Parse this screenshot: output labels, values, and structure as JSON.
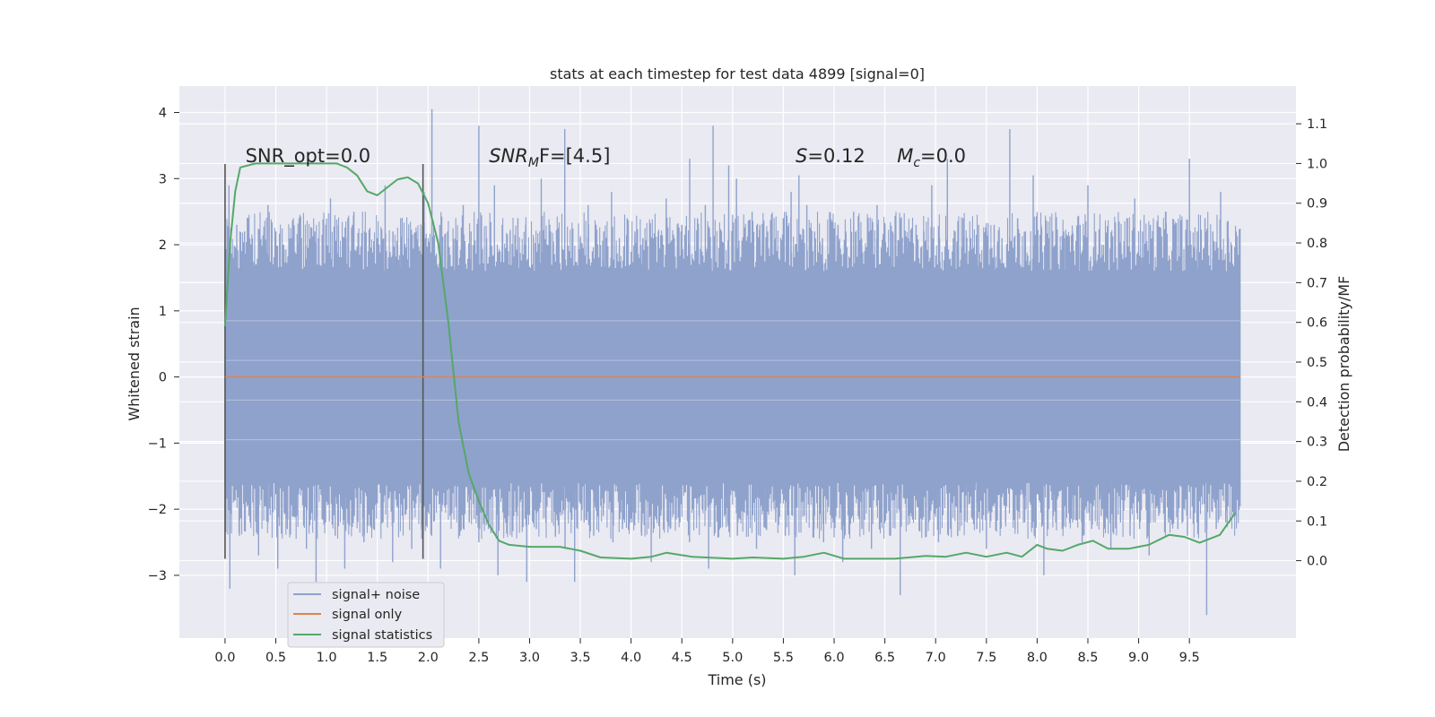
{
  "chart_data": {
    "type": "line",
    "title": "stats at each timestep for test data 4899 [signal=0]",
    "xlabel": "Time (s)",
    "ylabel": "Whitened strain",
    "y2label": "Detection probability/MF",
    "xlim": [
      -0.45,
      10.55
    ],
    "ylim": [
      -3.95,
      4.4
    ],
    "y2lim": [
      -0.195,
      1.195
    ],
    "xticks": [
      "0.0",
      "0.5",
      "1.0",
      "1.5",
      "2.0",
      "2.5",
      "3.0",
      "3.5",
      "4.0",
      "4.5",
      "5.0",
      "5.5",
      "6.0",
      "6.5",
      "7.0",
      "7.5",
      "8.0",
      "8.5",
      "9.0",
      "9.5"
    ],
    "yticks": [
      "4",
      "3",
      "2",
      "1",
      "0",
      "−1",
      "−2",
      "−3"
    ],
    "y2ticks": [
      "1.1",
      "1.0",
      "0.9",
      "0.8",
      "0.7",
      "0.6",
      "0.5",
      "0.4",
      "0.3",
      "0.2",
      "0.1",
      "0.0"
    ],
    "grid": true,
    "legend_position": "lower-left",
    "colors": {
      "noise": "#8fa2cc",
      "signal": "#dd8452",
      "stats": "#55a868",
      "marker": "#555555",
      "background": "#eaeaf2",
      "grid": "#ffffff"
    },
    "annotations": [
      {
        "text": "SNR_opt=0.0",
        "x": 0.2,
        "y": 3.25
      },
      {
        "text": "SNR",
        "sub": "M",
        "suffix": "F=[4.5]",
        "x": 2.6,
        "y": 3.25,
        "italic": true
      },
      {
        "text": "S",
        "suffix": "=0.12",
        "x": 5.62,
        "y": 3.25,
        "italic": true
      },
      {
        "text": "M",
        "sub": "c",
        "suffix": "=0.0",
        "x": 6.62,
        "y": 3.25,
        "italic": true
      }
    ],
    "markers": [
      {
        "x": 0.0,
        "y_range": [
          -2.75,
          3.22
        ]
      },
      {
        "x": 1.95,
        "y_range": [
          -2.75,
          3.22
        ]
      }
    ],
    "series": [
      {
        "name": "signal+ noise",
        "kind": "noise",
        "x_range": [
          0.0,
          10.0
        ],
        "band": [
          -1.45,
          1.45
        ],
        "peaks_up": [
          2.9,
          2.3,
          2.2,
          2.1,
          2.0,
          2.6,
          2.2,
          2.0,
          2.1,
          2.4,
          2.0,
          2.2,
          2.0,
          2.7,
          2.3,
          2.1,
          2.5,
          2.0,
          2.2,
          2.1,
          2.9,
          2.2,
          2.4,
          2.1,
          2.2,
          2.8,
          4.05,
          2.3,
          2.2,
          2.1,
          2.6,
          2.2,
          3.8,
          2.1,
          2.9,
          2.3,
          2.2,
          2.4,
          2.3,
          2.1,
          3.0,
          2.2,
          2.1,
          3.75,
          2.2,
          2.1,
          2.6,
          2.3,
          2.2,
          2.8,
          2.1,
          2.4,
          2.2,
          2.1,
          2.0,
          2.2,
          2.7,
          2.1,
          2.3,
          3.3,
          2.4,
          2.6,
          3.8,
          2.2,
          3.2,
          3.0,
          2.1,
          2.5,
          2.3,
          2.2,
          2.1,
          2.4,
          2.8,
          3.05,
          2.6,
          2.2,
          2.1,
          2.4,
          2.3,
          2.2,
          2.5,
          2.1,
          2.2,
          2.6,
          2.3,
          2.2,
          2.4,
          2.1,
          2.3,
          2.2,
          2.9,
          2.1,
          3.3,
          2.2,
          2.4,
          2.1,
          2.3,
          2.2,
          2.3,
          2.1,
          3.75,
          2.4,
          2.2,
          3.05,
          2.3,
          2.1,
          2.2,
          2.1,
          2.2,
          2.3,
          2.9,
          2.2,
          2.0,
          2.1,
          2.2,
          2.4,
          2.7,
          2.2,
          2.3,
          2.1,
          2.5,
          2.2,
          2.1,
          3.3,
          2.2,
          2.4,
          2.2,
          2.8,
          2.1,
          2.2
        ],
        "peaks_down": [
          -3.2,
          -2.4,
          -2.1,
          -2.7,
          -2.2,
          -2.9,
          -2.3,
          -2.1,
          -2.6,
          -3.1,
          -2.2,
          -2.4,
          -2.9,
          -2.1,
          -2.5,
          -2.3,
          -2.2,
          -2.8,
          -2.1,
          -2.6,
          -2.3,
          -2.2,
          -2.9,
          -2.1,
          -2.4,
          -2.2,
          -2.5,
          -2.3,
          -3.0,
          -2.2,
          -2.1,
          -3.1,
          -2.3,
          -2.2,
          -2.4,
          -2.6,
          -3.1,
          -2.2,
          -2.4,
          -2.1,
          -2.5,
          -2.3,
          -2.2,
          -2.4,
          -2.8,
          -2.1,
          -2.3,
          -2.2,
          -2.5,
          -2.1,
          -2.9,
          -2.3,
          -2.2,
          -2.4,
          -2.1,
          -2.6,
          -2.3,
          -2.2,
          -2.4,
          -3.0,
          -2.1,
          -2.3,
          -2.5,
          -2.2,
          -2.8,
          -2.1,
          -2.3,
          -2.6,
          -2.2,
          -2.4,
          -3.3,
          -2.1,
          -2.3,
          -2.2,
          -2.5,
          -2.1,
          -2.4,
          -2.2,
          -2.3,
          -2.6,
          -2.1,
          -2.2,
          -2.3,
          -2.2,
          -2.4,
          -3.0,
          -2.1,
          -2.3,
          -2.2,
          -2.5,
          -2.3,
          -2.1,
          -2.6,
          -2.2,
          -2.4,
          -2.3,
          -2.7,
          -2.1,
          -2.2,
          -2.3,
          -2.4,
          -2.2,
          -3.6,
          -2.3,
          -2.2,
          -2.1
        ]
      },
      {
        "name": "signal only",
        "kind": "line",
        "x": [
          0.0,
          10.0
        ],
        "y": [
          0.0,
          0.0
        ]
      },
      {
        "name": "signal statistics",
        "kind": "line",
        "axis": "right",
        "x": [
          0.0,
          0.05,
          0.1,
          0.15,
          0.3,
          0.5,
          0.7,
          0.9,
          1.1,
          1.2,
          1.3,
          1.4,
          1.5,
          1.6,
          1.7,
          1.8,
          1.9,
          2.0,
          2.1,
          2.2,
          2.3,
          2.4,
          2.5,
          2.6,
          2.7,
          2.8,
          3.0,
          3.3,
          3.5,
          3.7,
          4.0,
          4.2,
          4.35,
          4.6,
          5.0,
          5.2,
          5.5,
          5.7,
          5.9,
          6.1,
          6.3,
          6.6,
          6.9,
          7.1,
          7.3,
          7.5,
          7.7,
          7.85,
          8.0,
          8.1,
          8.25,
          8.4,
          8.55,
          8.7,
          8.9,
          9.1,
          9.3,
          9.45,
          9.6,
          9.8,
          9.95
        ],
        "y": [
          0.59,
          0.8,
          0.93,
          0.99,
          1.0,
          1.0,
          1.0,
          1.0,
          1.0,
          0.99,
          0.97,
          0.93,
          0.92,
          0.94,
          0.96,
          0.965,
          0.95,
          0.9,
          0.8,
          0.6,
          0.35,
          0.22,
          0.15,
          0.09,
          0.05,
          0.04,
          0.035,
          0.035,
          0.025,
          0.008,
          0.005,
          0.01,
          0.02,
          0.01,
          0.005,
          0.008,
          0.005,
          0.01,
          0.02,
          0.005,
          0.005,
          0.005,
          0.012,
          0.01,
          0.02,
          0.01,
          0.02,
          0.01,
          0.04,
          0.03,
          0.025,
          0.04,
          0.05,
          0.03,
          0.03,
          0.04,
          0.065,
          0.06,
          0.045,
          0.065,
          0.12
        ]
      }
    ]
  }
}
